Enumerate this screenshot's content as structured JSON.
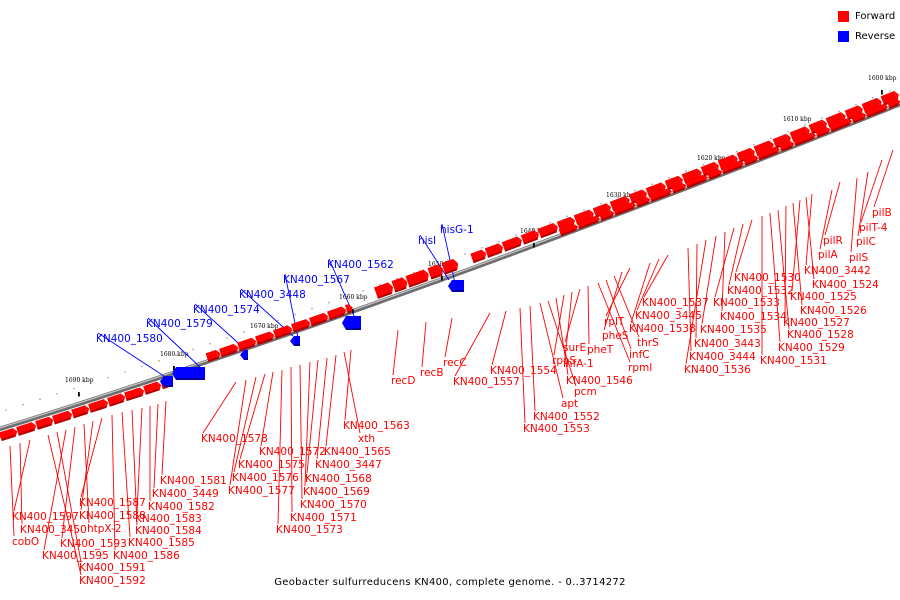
{
  "title": "Geobacter sulfurreducens KN400, complete genome. - 0..3714272",
  "colors": {
    "forward": "#ff0000",
    "reverse": "#0000ff",
    "axis": "#808080"
  },
  "legend": {
    "forward": "Forward",
    "reverse": "Reverse"
  },
  "ticks": [
    "1600 kbp",
    "1610 kbp",
    "1620 kbp",
    "1630 kbp",
    "1640 kbp",
    "1650 kbp",
    "1660 kbp",
    "1670 kbp",
    "1680 kbp",
    "1690 kbp"
  ],
  "forward_labels": [
    "pilB",
    "pilT-4",
    "pilC",
    "pilS",
    "pilR",
    "pilA",
    "KN400_3442",
    "KN400_1524",
    "KN400_1525",
    "KN400_1526",
    "KN400_1527",
    "KN400_1528",
    "KN400_1529",
    "KN400_1531",
    "KN400_1530",
    "KN400_1532",
    "KN400_1533",
    "KN400_1534",
    "KN400_1535",
    "KN400_1536",
    "KN400_3443",
    "KN400_3444",
    "KN400_1537",
    "KN400_3445",
    "KN400_1538",
    "rplT",
    "pheS",
    "thrS",
    "infC",
    "rpmI",
    "pheT",
    "surE",
    "ihfA-1",
    "rpoS",
    "KN400_1546",
    "pcm",
    "apt",
    "KN400_1552",
    "KN400_1553",
    "KN400_1554",
    "KN400_1557",
    "recC",
    "recB",
    "recD",
    "KN400_1563",
    "xth",
    "KN400_1565",
    "KN400_3447",
    "KN400_1568",
    "KN400_1569",
    "KN400_1570",
    "KN400_1571",
    "KN400_1573",
    "KN400_1572",
    "KN400_1575",
    "KN400_1576",
    "KN400_1577",
    "KN400_1578",
    "KN400_1581",
    "KN400_3449",
    "KN400_1582",
    "KN400_1583",
    "KN400_1584",
    "KN400_1585",
    "KN400_1586",
    "KN400_1587",
    "KN400_1588",
    "htpX-2",
    "KN400_1593",
    "KN400_1595",
    "KN400_1591",
    "KN400_1592",
    "KN400_1597",
    "KN400_3450",
    "cobO"
  ],
  "reverse_labels": [
    "hisG-1",
    "hisI",
    "KN400_1562",
    "KN400_1567",
    "KN400_3448",
    "KN400_1574",
    "KN400_1579",
    "KN400_1580"
  ]
}
